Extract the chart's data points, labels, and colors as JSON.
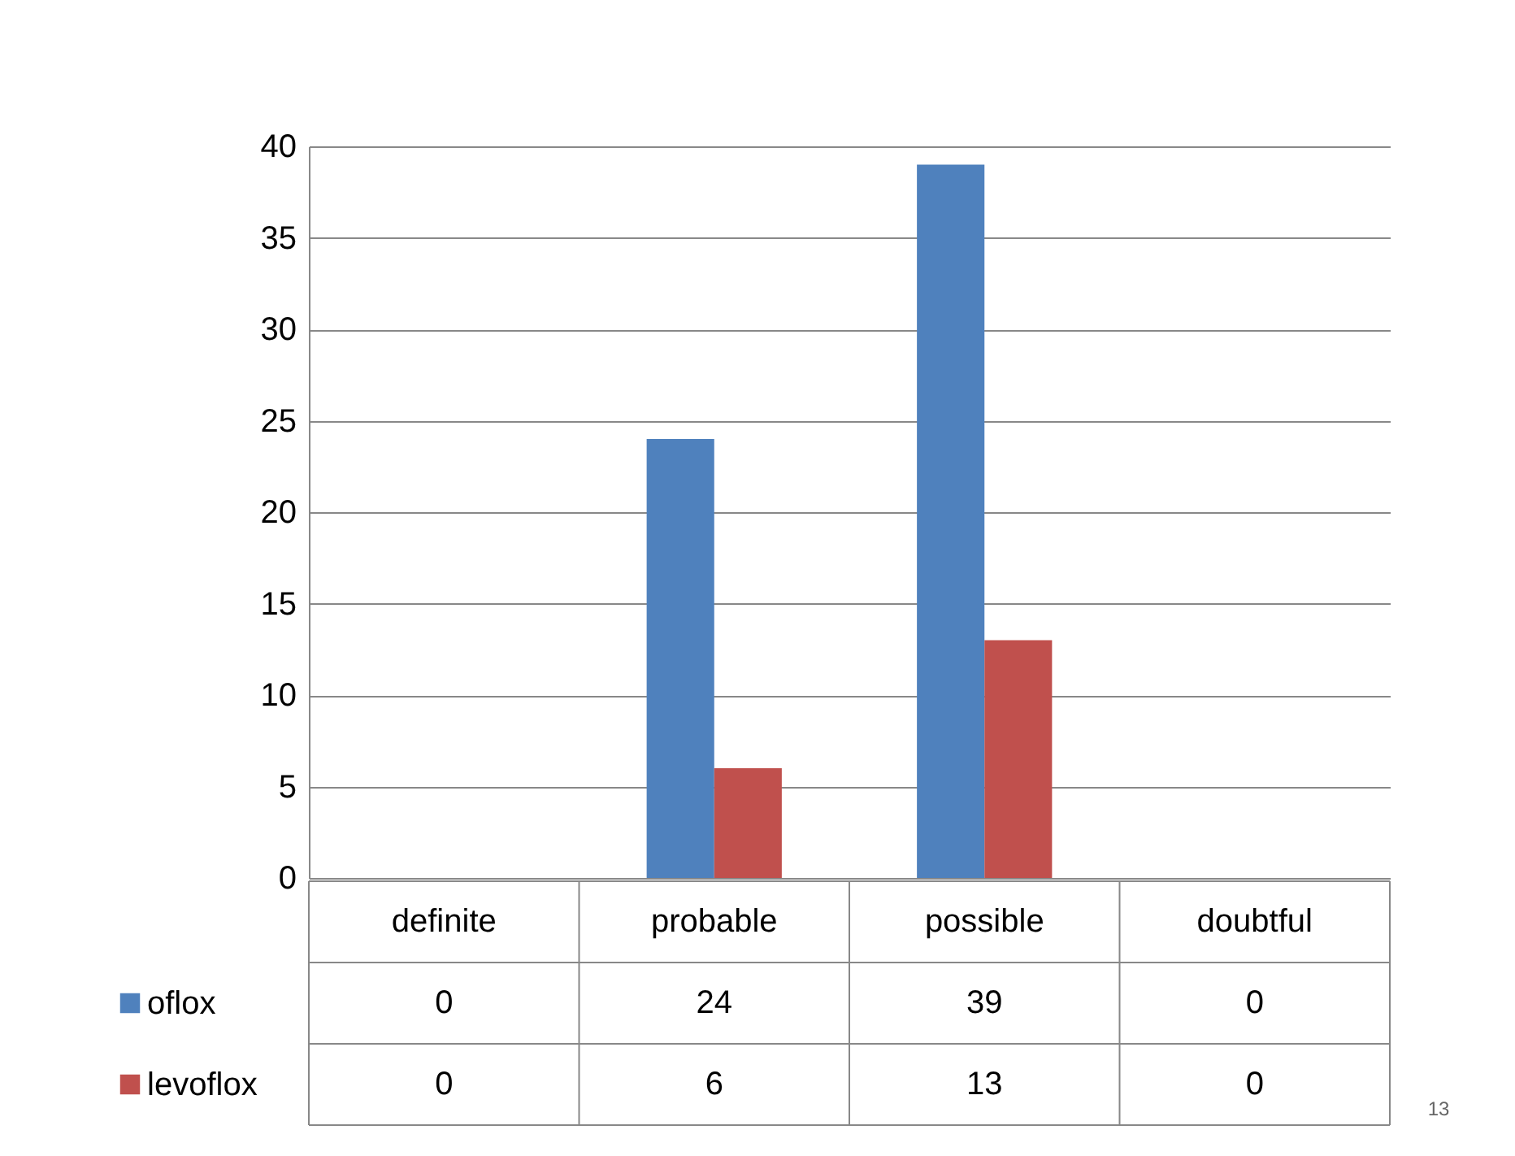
{
  "chart_data": {
    "type": "bar",
    "categories": [
      "definite",
      "probable",
      "possible",
      "doubtful"
    ],
    "series": [
      {
        "name": "oflox",
        "color": "#4f81bd",
        "values": [
          0,
          24,
          39,
          0
        ]
      },
      {
        "name": "levoflox",
        "color": "#c0504d",
        "values": [
          0,
          6,
          13,
          0
        ]
      }
    ],
    "ylim": [
      0,
      40
    ],
    "yticks": [
      0,
      5,
      10,
      15,
      20,
      25,
      30,
      35,
      40
    ],
    "grid": "y",
    "data_labels": true,
    "legend": "bottom left",
    "annotations": [
      "13"
    ]
  }
}
